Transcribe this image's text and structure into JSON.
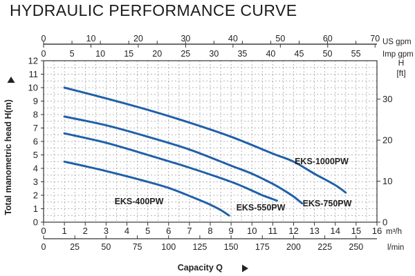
{
  "chart_data": {
    "type": "line",
    "title": "HYDRAULIC PERFORMANCE CURVE",
    "ylabel": "Total manometric head H(m)",
    "xlabel": "Capacity Q",
    "y": {
      "range": [
        0,
        12
      ],
      "ticks": [
        "0",
        "1",
        "2",
        "3",
        "4",
        "5",
        "6",
        "7",
        "8",
        "9",
        "10",
        "11",
        "12"
      ]
    },
    "y_right": {
      "label": "H",
      "unit": "[ft]",
      "range": [
        0,
        39.37
      ],
      "ticks": [
        "0",
        "10",
        "20",
        "30"
      ]
    },
    "x": {
      "unit": "m³/h",
      "range": [
        0,
        16
      ],
      "ticks": [
        "0",
        "1",
        "2",
        "3",
        "4",
        "5",
        "6",
        "7",
        "8",
        "9",
        "10",
        "11",
        "12",
        "13",
        "14",
        "15",
        "16"
      ]
    },
    "x_lpm": {
      "unit": "l/min",
      "range": [
        0,
        266.7
      ],
      "ticks": [
        "0",
        "25",
        "50",
        "75",
        "100",
        "125",
        "150",
        "175",
        "200",
        "225",
        "250"
      ]
    },
    "x_us": {
      "unit": "US gpm",
      "range": [
        0,
        70.4
      ],
      "ticks": [
        "0",
        "10",
        "20",
        "30",
        "40",
        "50",
        "60",
        "70"
      ]
    },
    "x_imp": {
      "unit": "Imp gpm",
      "range": [
        0,
        58.7
      ],
      "ticks": [
        "0",
        "5",
        "10",
        "15",
        "20",
        "25",
        "30",
        "35",
        "40",
        "45",
        "50",
        "55"
      ]
    },
    "grid": true,
    "line_color": "#2060a8",
    "series": [
      {
        "name": "EKS-1000PW",
        "x": [
          1,
          3,
          5,
          7,
          9,
          11,
          12,
          13,
          14,
          14.5
        ],
        "y": [
          10.0,
          9.2,
          8.35,
          7.4,
          6.35,
          5.1,
          4.5,
          3.6,
          2.75,
          2.2
        ]
      },
      {
        "name": "EKS-750PW",
        "x": [
          1,
          3,
          5,
          7,
          9,
          10,
          11,
          11.5,
          12,
          12.4
        ],
        "y": [
          7.85,
          7.2,
          6.35,
          5.4,
          4.2,
          3.6,
          2.85,
          2.4,
          1.9,
          1.4
        ]
      },
      {
        "name": "EKS-550PW",
        "x": [
          1,
          3,
          5,
          7,
          9,
          10,
          10.5,
          11.2
        ],
        "y": [
          6.6,
          5.9,
          5.0,
          4.05,
          3.0,
          2.35,
          2.0,
          1.6
        ]
      },
      {
        "name": "EKS-400PW",
        "x": [
          1,
          3,
          5,
          6,
          7,
          8,
          8.5,
          8.9
        ],
        "y": [
          4.5,
          3.8,
          3.0,
          2.55,
          1.95,
          1.3,
          0.9,
          0.5
        ]
      }
    ]
  }
}
